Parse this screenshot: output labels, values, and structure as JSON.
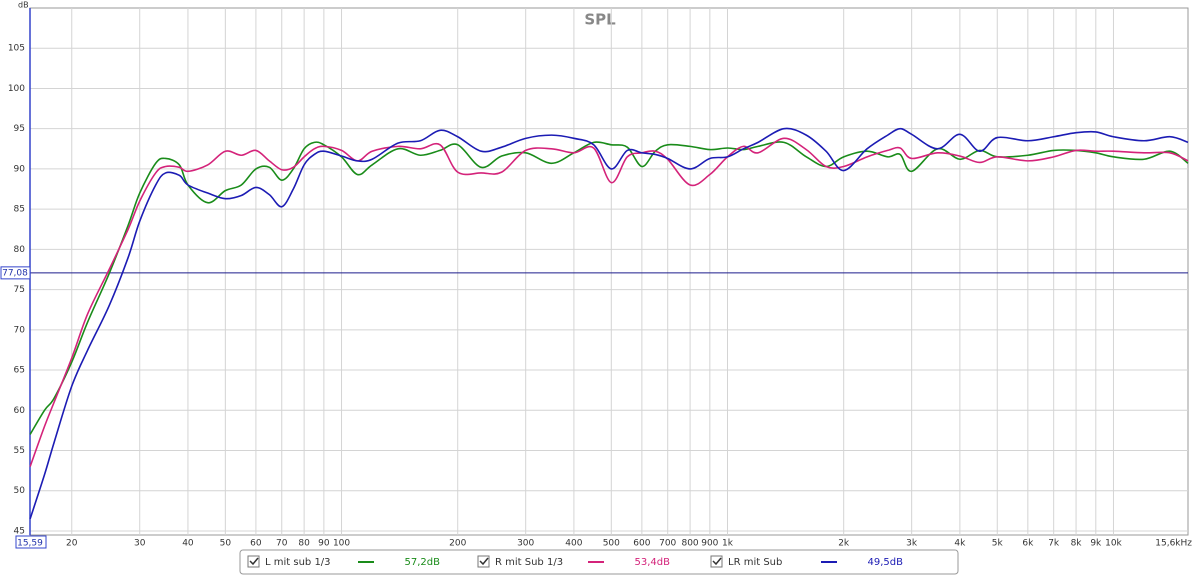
{
  "chart_data": {
    "type": "line",
    "title": "SPL",
    "y_unit": "dB",
    "log_x": true,
    "grid": true,
    "xlim": [
      15.59,
      15600
    ],
    "ylim": [
      44.5,
      110
    ],
    "xticks": [
      {
        "value": 15.59,
        "label": "15,59"
      },
      20,
      30,
      40,
      50,
      60,
      70,
      80,
      90,
      100,
      200,
      300,
      400,
      500,
      600,
      700,
      800,
      900,
      {
        "value": 1000,
        "label": "1k"
      },
      {
        "value": 2000,
        "label": "2k"
      },
      {
        "value": 3000,
        "label": "3k"
      },
      {
        "value": 4000,
        "label": "4k"
      },
      {
        "value": 5000,
        "label": "5k"
      },
      {
        "value": 6000,
        "label": "6k"
      },
      {
        "value": 7000,
        "label": "7k"
      },
      {
        "value": 8000,
        "label": "8k"
      },
      {
        "value": 9000,
        "label": "9k"
      },
      {
        "value": 10000,
        "label": "10k"
      },
      {
        "value": 15600,
        "label": "15,6kHz"
      }
    ],
    "yticks": [
      45,
      50,
      55,
      60,
      65,
      70,
      75,
      80,
      85,
      90,
      95,
      100,
      105
    ],
    "cursor": {
      "value": 77.08,
      "label": "77,08"
    },
    "x": [
      15.6,
      17,
      18,
      20,
      22,
      25,
      28,
      30,
      33,
      35,
      38,
      40,
      45,
      50,
      55,
      60,
      65,
      70,
      75,
      80,
      85,
      90,
      100,
      110,
      120,
      140,
      160,
      180,
      200,
      230,
      260,
      300,
      350,
      400,
      450,
      500,
      550,
      600,
      650,
      700,
      800,
      900,
      1000,
      1100,
      1200,
      1400,
      1600,
      1800,
      2000,
      2300,
      2600,
      2800,
      3000,
      3500,
      4000,
      4500,
      5000,
      6000,
      7000,
      8000,
      9000,
      10000,
      12000,
      14000,
      15600
    ],
    "series": [
      {
        "name": "L mit sub 1/3",
        "color": "#1a8c1a",
        "checked": true,
        "legend_value": "57,2dB",
        "values": [
          57,
          60,
          61.5,
          66,
          71,
          77,
          83,
          87,
          90.7,
          91.3,
          90.5,
          88,
          85.8,
          87.3,
          88,
          90,
          90.2,
          88.6,
          90,
          92.5,
          93.3,
          93,
          91.5,
          89.3,
          90.5,
          92.5,
          91.7,
          92.3,
          93,
          90.2,
          91.6,
          92,
          90.7,
          92,
          93.3,
          93,
          92.7,
          90.3,
          92.2,
          93,
          92.8,
          92.4,
          92.6,
          92.4,
          92.8,
          93.3,
          91.5,
          90.3,
          91.5,
          92.2,
          91.5,
          91.8,
          89.7,
          92.5,
          91.2,
          92.3,
          91.5,
          91.7,
          92.3,
          92.3,
          92,
          91.5,
          91.2,
          92.2,
          90.7
        ]
      },
      {
        "name": "R mit Sub 1/3",
        "color": "#d4237a",
        "checked": true,
        "legend_value": "53,4dB",
        "values": [
          53,
          58,
          61,
          66.5,
          72,
          77.5,
          82.5,
          86,
          89.5,
          90.3,
          90.2,
          89.7,
          90.5,
          92.2,
          91.7,
          92.3,
          91,
          89.9,
          90.2,
          91.5,
          92.5,
          92.8,
          92.3,
          91,
          92.2,
          92.8,
          92.5,
          93,
          89.6,
          89.5,
          89.6,
          92.3,
          92.5,
          92,
          92.6,
          88.3,
          91.5,
          92,
          92.2,
          91.2,
          88,
          89.3,
          91.5,
          92.8,
          92,
          93.8,
          92.4,
          90.3,
          90.3,
          91.5,
          92.3,
          92.6,
          91.3,
          92,
          91.6,
          90.8,
          91.5,
          91,
          91.5,
          92.3,
          92.2,
          92.2,
          92,
          92,
          91
        ]
      },
      {
        "name": "LR mit Sub",
        "color": "#1c1cb4",
        "checked": true,
        "legend_value": "49,5dB",
        "values": [
          46.5,
          52,
          56,
          63,
          67.5,
          73,
          79,
          83.5,
          88,
          89.5,
          89.2,
          88,
          87,
          86.3,
          86.7,
          87.7,
          86.8,
          85.3,
          87.5,
          90.5,
          91.8,
          92.2,
          91.6,
          91,
          91.2,
          93.2,
          93.5,
          94.8,
          94,
          92.2,
          92.7,
          93.8,
          94.2,
          93.8,
          93,
          90,
          92.3,
          92,
          91.8,
          91.3,
          90,
          91.3,
          91.5,
          92.5,
          93.3,
          95,
          94.2,
          92.2,
          89.8,
          92.5,
          94.2,
          95,
          94.3,
          92.5,
          94.3,
          92.2,
          93.9,
          93.5,
          94,
          94.5,
          94.6,
          94,
          93.5,
          94,
          93.3
        ]
      }
    ]
  }
}
